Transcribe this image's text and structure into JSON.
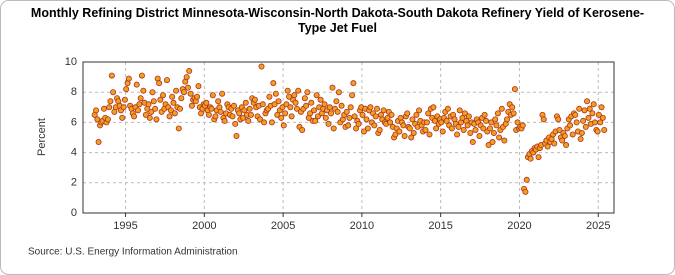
{
  "chart_data": {
    "type": "scatter",
    "title": "Monthly Refining District Minnesota-Wisconsin-North Dakota-South Dakota Refinery Yield of Kerosene-Type Jet Fuel",
    "y_label": "Percent",
    "source": "Source: U.S. Energy Information Administration",
    "color": "#f0a020",
    "edge_color": "#b03020",
    "xlim": [
      1992.3,
      2026
    ],
    "xticks": [
      1995,
      2000,
      2005,
      2010,
      2015,
      2020,
      2025
    ],
    "ylim": [
      0,
      10
    ],
    "yticks": [
      0,
      2,
      4,
      6,
      8,
      10
    ],
    "grid": true,
    "x": [
      1993.04,
      1993.13,
      1993.21,
      1993.29,
      1993.38,
      1993.46,
      1993.54,
      1993.63,
      1993.71,
      1993.79,
      1993.88,
      1993.96,
      1994.04,
      1994.13,
      1994.21,
      1994.29,
      1994.38,
      1994.46,
      1994.54,
      1994.63,
      1994.71,
      1994.79,
      1994.88,
      1994.96,
      1995.04,
      1995.13,
      1995.21,
      1995.29,
      1995.38,
      1995.46,
      1995.54,
      1995.63,
      1995.71,
      1995.79,
      1995.88,
      1995.96,
      1996.04,
      1996.13,
      1996.21,
      1996.29,
      1996.38,
      1996.46,
      1996.54,
      1996.63,
      1996.71,
      1996.79,
      1996.88,
      1996.96,
      1997.04,
      1997.13,
      1997.21,
      1997.29,
      1997.38,
      1997.46,
      1997.54,
      1997.63,
      1997.71,
      1997.79,
      1997.88,
      1997.96,
      1998.04,
      1998.13,
      1998.21,
      1998.29,
      1998.38,
      1998.46,
      1998.54,
      1998.63,
      1998.71,
      1998.79,
      1998.88,
      1998.96,
      1999.04,
      1999.13,
      1999.21,
      1999.29,
      1999.38,
      1999.46,
      1999.54,
      1999.63,
      1999.71,
      1999.79,
      1999.88,
      1999.96,
      2000.04,
      2000.13,
      2000.21,
      2000.29,
      2000.38,
      2000.46,
      2000.54,
      2000.63,
      2000.71,
      2000.79,
      2000.88,
      2000.96,
      2001.04,
      2001.13,
      2001.21,
      2001.29,
      2001.38,
      2001.46,
      2001.54,
      2001.63,
      2001.71,
      2001.79,
      2001.88,
      2001.96,
      2002.04,
      2002.13,
      2002.21,
      2002.29,
      2002.38,
      2002.46,
      2002.54,
      2002.63,
      2002.71,
      2002.79,
      2002.88,
      2002.96,
      2003.04,
      2003.13,
      2003.21,
      2003.29,
      2003.38,
      2003.46,
      2003.54,
      2003.63,
      2003.71,
      2003.79,
      2003.88,
      2003.96,
      2004.04,
      2004.13,
      2004.21,
      2004.29,
      2004.38,
      2004.46,
      2004.54,
      2004.63,
      2004.71,
      2004.79,
      2004.88,
      2004.96,
      2005.04,
      2005.13,
      2005.21,
      2005.29,
      2005.38,
      2005.46,
      2005.54,
      2005.63,
      2005.71,
      2005.79,
      2005.88,
      2005.96,
      2006.04,
      2006.13,
      2006.21,
      2006.29,
      2006.38,
      2006.46,
      2006.54,
      2006.63,
      2006.71,
      2006.79,
      2006.88,
      2006.96,
      2007.04,
      2007.13,
      2007.21,
      2007.29,
      2007.38,
      2007.46,
      2007.54,
      2007.63,
      2007.71,
      2007.79,
      2007.88,
      2007.96,
      2008.04,
      2008.13,
      2008.21,
      2008.29,
      2008.38,
      2008.46,
      2008.54,
      2008.63,
      2008.71,
      2008.79,
      2008.88,
      2008.96,
      2009.04,
      2009.13,
      2009.21,
      2009.29,
      2009.38,
      2009.46,
      2009.54,
      2009.63,
      2009.71,
      2009.79,
      2009.88,
      2009.96,
      2010.04,
      2010.13,
      2010.21,
      2010.29,
      2010.38,
      2010.46,
      2010.54,
      2010.63,
      2010.71,
      2010.79,
      2010.88,
      2010.96,
      2011.04,
      2011.13,
      2011.21,
      2011.29,
      2011.38,
      2011.46,
      2011.54,
      2011.63,
      2011.71,
      2011.79,
      2011.88,
      2011.96,
      2012.04,
      2012.13,
      2012.21,
      2012.29,
      2012.38,
      2012.46,
      2012.54,
      2012.63,
      2012.71,
      2012.79,
      2012.88,
      2012.96,
      2013.04,
      2013.13,
      2013.21,
      2013.29,
      2013.38,
      2013.46,
      2013.54,
      2013.63,
      2013.71,
      2013.79,
      2013.88,
      2013.96,
      2014.04,
      2014.13,
      2014.21,
      2014.29,
      2014.38,
      2014.46,
      2014.54,
      2014.63,
      2014.71,
      2014.79,
      2014.88,
      2014.96,
      2015.04,
      2015.13,
      2015.21,
      2015.29,
      2015.38,
      2015.46,
      2015.54,
      2015.63,
      2015.71,
      2015.79,
      2015.88,
      2015.96,
      2016.04,
      2016.13,
      2016.21,
      2016.29,
      2016.38,
      2016.46,
      2016.54,
      2016.63,
      2016.71,
      2016.79,
      2016.88,
      2016.96,
      2017.04,
      2017.13,
      2017.21,
      2017.29,
      2017.38,
      2017.46,
      2017.54,
      2017.63,
      2017.71,
      2017.79,
      2017.88,
      2017.96,
      2018.04,
      2018.13,
      2018.21,
      2018.29,
      2018.38,
      2018.46,
      2018.54,
      2018.63,
      2018.71,
      2018.79,
      2018.88,
      2018.96,
      2019.04,
      2019.13,
      2019.21,
      2019.29,
      2019.38,
      2019.46,
      2019.54,
      2019.63,
      2019.71,
      2019.79,
      2019.88,
      2019.96,
      2020.04,
      2020.13,
      2020.21,
      2020.29,
      2020.38,
      2020.46,
      2020.54,
      2020.63,
      2020.71,
      2020.79,
      2020.88,
      2020.96,
      2021.04,
      2021.13,
      2021.21,
      2021.29,
      2021.38,
      2021.46,
      2021.54,
      2021.63,
      2021.71,
      2021.79,
      2021.88,
      2021.96,
      2022.04,
      2022.13,
      2022.21,
      2022.29,
      2022.38,
      2022.46,
      2022.54,
      2022.63,
      2022.71,
      2022.79,
      2022.88,
      2022.96,
      2023.04,
      2023.13,
      2023.21,
      2023.29,
      2023.38,
      2023.46,
      2023.54,
      2023.63,
      2023.71,
      2023.79,
      2023.88,
      2023.96,
      2024.04,
      2024.13,
      2024.21,
      2024.29,
      2024.38,
      2024.46,
      2024.54,
      2024.63,
      2024.71,
      2024.79,
      2024.88,
      2024.96,
      2025.04,
      2025.13,
      2025.21,
      2025.29,
      2025.38
    ],
    "values": [
      6.5,
      6.8,
      6.2,
      4.7,
      5.8,
      6.0,
      6.1,
      6.9,
      6.3,
      6.0,
      6.2,
      7.0,
      7.4,
      9.1,
      8.0,
      6.7,
      7.0,
      7.6,
      7.4,
      7.1,
      6.8,
      6.3,
      7.0,
      7.5,
      8.2,
      8.6,
      8.9,
      7.1,
      6.9,
      6.6,
      6.4,
      7.0,
      8.5,
      6.8,
      7.2,
      7.6,
      9.1,
      8.1,
      7.3,
      6.5,
      6.9,
      7.2,
      6.3,
      6.7,
      8.0,
      7.4,
      6.9,
      6.2,
      8.9,
      8.6,
      7.5,
      6.7,
      7.8,
      6.9,
      7.2,
      8.8,
      7.0,
      6.4,
      6.8,
      7.7,
      7.3,
      6.6,
      8.1,
      7.0,
      5.6,
      6.9,
      7.6,
      8.2,
      8.0,
      8.7,
      9.0,
      8.3,
      9.4,
      7.9,
      7.1,
      7.5,
      7.6,
      7.4,
      7.7,
      8.4,
      7.0,
      6.6,
      6.9,
      7.2,
      7.1,
      7.3,
      6.8,
      6.5,
      7.0,
      6.9,
      7.8,
      6.2,
      6.4,
      6.8,
      7.4,
      7.0,
      6.7,
      7.9,
      6.3,
      6.1,
      6.6,
      7.2,
      7.0,
      6.5,
      6.9,
      6.4,
      7.1,
      5.9,
      5.1,
      6.8,
      6.6,
      6.2,
      7.0,
      6.3,
      6.8,
      7.3,
      6.5,
      6.1,
      6.9,
      6.5,
      7.6,
      7.3,
      7.5,
      7.0,
      6.4,
      7.1,
      6.2,
      9.7,
      7.2,
      6.0,
      6.6,
      6.8,
      6.9,
      7.7,
      7.1,
      6.0,
      8.6,
      7.2,
      7.9,
      6.5,
      7.4,
      6.8,
      6.3,
      7.0,
      5.8,
      6.6,
      7.2,
      8.1,
      7.7,
      7.0,
      6.4,
      7.5,
      7.8,
      7.3,
      6.9,
      8.1,
      5.7,
      6.7,
      5.5,
      6.9,
      7.6,
      7.1,
      8.0,
      6.3,
      6.6,
      7.3,
      6.1,
      6.8,
      6.1,
      7.8,
      6.4,
      7.0,
      7.5,
      6.6,
      6.9,
      7.2,
      6.3,
      6.8,
      5.9,
      7.0,
      6.6,
      8.3,
      5.6,
      6.9,
      7.4,
      6.7,
      8.0,
      6.0,
      7.1,
      6.2,
      6.5,
      5.7,
      6.7,
      5.8,
      6.3,
      7.0,
      7.8,
      8.6,
      6.4,
      5.6,
      6.1,
      5.9,
      6.8,
      7.0,
      6.5,
      5.4,
      6.9,
      6.2,
      5.6,
      6.8,
      7.0,
      6.0,
      6.6,
      5.8,
      6.4,
      6.9,
      5.3,
      5.5,
      6.5,
      6.2,
      6.8,
      6.0,
      5.9,
      6.3,
      6.7,
      6.0,
      6.5,
      5.7,
      5.0,
      5.2,
      5.6,
      6.1,
      5.4,
      6.3,
      6.0,
      5.8,
      5.1,
      6.4,
      6.6,
      5.7,
      5.6,
      5.0,
      6.2,
      5.3,
      5.9,
      6.5,
      5.7,
      6.8,
      6.1,
      5.8,
      5.4,
      6.0,
      5.5,
      6.0,
      6.6,
      5.2,
      6.9,
      6.3,
      7.0,
      6.1,
      5.6,
      6.4,
      5.9,
      6.2,
      6.0,
      5.4,
      6.3,
      6.7,
      6.1,
      6.9,
      5.8,
      6.4,
      5.6,
      6.5,
      6.2,
      5.9,
      5.2,
      5.7,
      6.8,
      6.0,
      6.3,
      5.5,
      6.6,
      6.1,
      5.8,
      6.4,
      5.3,
      6.0,
      4.7,
      5.9,
      5.5,
      6.2,
      6.0,
      5.1,
      5.8,
      6.3,
      5.6,
      6.5,
      6.1,
      5.4,
      4.5,
      5.6,
      6.0,
      4.7,
      5.3,
      6.2,
      5.8,
      6.6,
      5.0,
      5.5,
      6.9,
      5.7,
      4.8,
      5.9,
      6.2,
      6.7,
      7.2,
      6.5,
      7.0,
      6.6,
      8.2,
      5.5,
      6.0,
      5.6,
      5.7,
      5.6,
      5.8,
      1.6,
      1.4,
      2.2,
      3.7,
      3.9,
      3.6,
      4.1,
      4.0,
      4.3,
      4.2,
      4.4,
      3.7,
      4.3,
      4.5,
      6.5,
      6.2,
      4.6,
      4.8,
      4.4,
      5.0,
      4.7,
      4.9,
      5.2,
      4.6,
      5.4,
      6.4,
      6.2,
      5.5,
      5.0,
      4.8,
      5.3,
      5.1,
      4.5,
      5.6,
      6.2,
      5.8,
      6.4,
      5.2,
      6.6,
      6.5,
      6.0,
      5.4,
      6.9,
      4.9,
      5.3,
      6.1,
      6.8,
      5.7,
      7.4,
      6.3,
      6.9,
      5.9,
      6.6,
      7.2,
      6.0,
      5.5,
      5.4,
      6.5,
      6.0,
      7.0,
      6.3,
      5.5
    ]
  }
}
